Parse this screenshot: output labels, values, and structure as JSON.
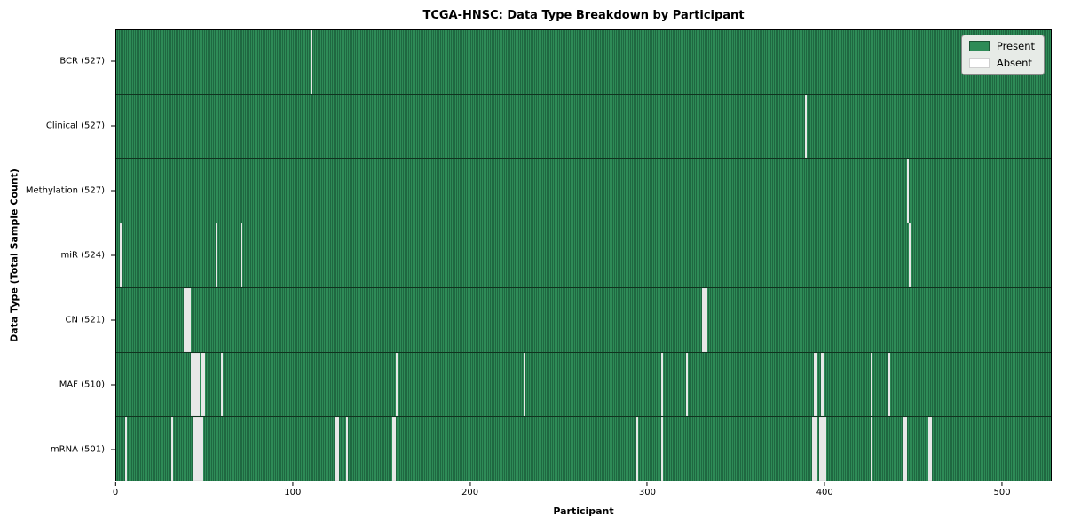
{
  "chart_data": {
    "type": "heatmap",
    "title": "TCGA-HNSC: Data Type Breakdown by Participant",
    "xlabel": "Participant",
    "ylabel": "Data Type (Total Sample Count)",
    "n_participants": 528,
    "x_ticks": [
      0,
      100,
      200,
      300,
      400,
      500
    ],
    "grid": false,
    "legend_position": "upper right",
    "legend": [
      {
        "label": "Present",
        "color": "#2e8b57"
      },
      {
        "label": "Absent",
        "color": "#ffffff"
      }
    ],
    "colors": {
      "present": "#2e8b57",
      "present_dark": "#1f6841",
      "absent": "#f7f7f7"
    },
    "rows": [
      {
        "key": "bcr",
        "label": "BCR (527)",
        "present_count": 527,
        "absent_participants": [
          110
        ]
      },
      {
        "key": "clinical",
        "label": "Clinical (527)",
        "present_count": 527,
        "absent_participants": [
          389
        ]
      },
      {
        "key": "methylation",
        "label": "Methylation (527)",
        "present_count": 527,
        "absent_participants": [
          447
        ]
      },
      {
        "key": "mir",
        "label": "miR (524)",
        "present_count": 524,
        "absent_participants": [
          2,
          56,
          70,
          448
        ]
      },
      {
        "key": "cn",
        "label": "CN (521)",
        "present_count": 521,
        "absent_participants": [
          38,
          39,
          40,
          41,
          331,
          332,
          333
        ]
      },
      {
        "key": "maf",
        "label": "MAF (510)",
        "present_count": 510,
        "absent_participants": [
          42,
          43,
          44,
          45,
          46,
          48,
          49,
          59,
          158,
          230,
          308,
          322,
          394,
          395,
          398,
          399,
          426,
          436
        ]
      },
      {
        "key": "mrna",
        "label": "mRNA (501)",
        "present_count": 501,
        "absent_participants": [
          5,
          31,
          43,
          44,
          45,
          46,
          47,
          48,
          124,
          125,
          130,
          156,
          157,
          294,
          308,
          393,
          394,
          395,
          397,
          398,
          399,
          400,
          426,
          445,
          446,
          459,
          460
        ]
      }
    ]
  }
}
